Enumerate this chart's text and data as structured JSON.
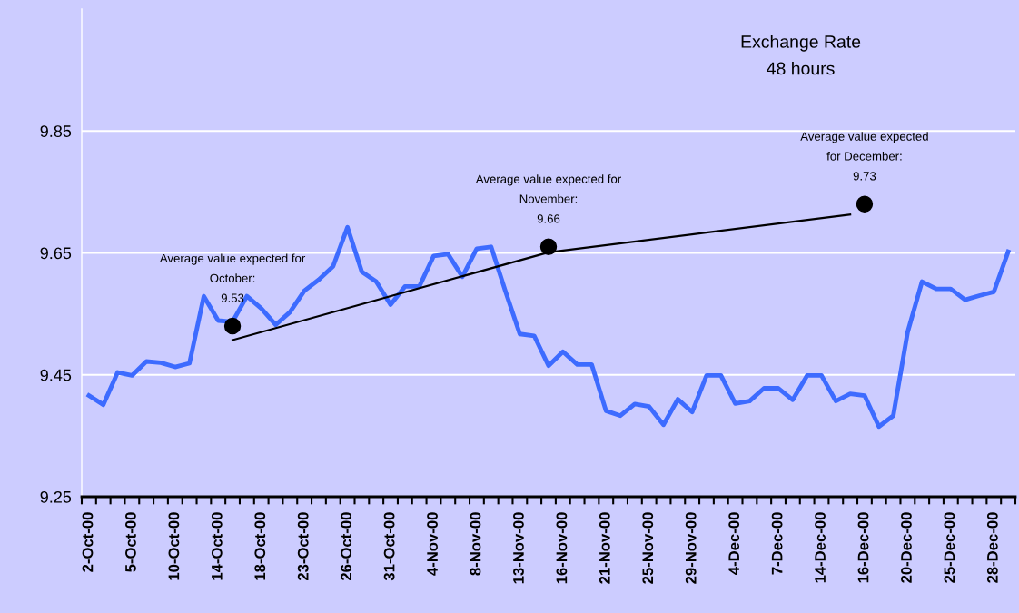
{
  "chart_data": {
    "type": "line",
    "title": "Exchange Rate",
    "subtitle": "48 hours",
    "categories": [
      "2-Oct-00",
      null,
      null,
      "5-Oct-00",
      null,
      null,
      "10-Oct-00",
      null,
      null,
      "14-Oct-00",
      null,
      null,
      "18-Oct-00",
      null,
      null,
      "23-Oct-00",
      null,
      null,
      "26-Oct-00",
      null,
      null,
      "31-Oct-00",
      null,
      null,
      "4-Nov-00",
      null,
      null,
      "8-Nov-00",
      null,
      null,
      "13-Nov-00",
      null,
      null,
      "16-Nov-00",
      null,
      null,
      "21-Nov-00",
      null,
      null,
      "25-Nov-00",
      null,
      null,
      "29-Nov-00",
      null,
      null,
      "4-Dec-00",
      null,
      null,
      "7-Dec-00",
      null,
      null,
      "14-Dec-00",
      null,
      null,
      "16-Dec-00",
      null,
      null,
      "20-Dec-00",
      null,
      null,
      "25-Dec-00",
      null,
      null,
      "28-Dec-00",
      null
    ],
    "series": [
      {
        "color": "#3d6bff",
        "values": [
          9.416,
          9.401,
          9.454,
          9.449,
          9.472,
          9.47,
          9.463,
          9.469,
          9.579,
          9.539,
          9.537,
          9.579,
          9.559,
          9.532,
          9.553,
          9.588,
          9.606,
          9.628,
          9.692,
          9.619,
          9.603,
          9.565,
          9.595,
          9.595,
          9.645,
          9.648,
          9.611,
          9.657,
          9.66,
          9.587,
          9.517,
          9.514,
          9.465,
          9.488,
          9.467,
          9.467,
          9.391,
          9.383,
          9.402,
          9.398,
          9.368,
          9.41,
          9.389,
          9.449,
          9.449,
          9.403,
          9.407,
          9.428,
          9.428,
          9.409,
          9.449,
          9.449,
          9.407,
          9.419,
          9.416,
          9.365,
          9.383,
          9.52,
          9.603,
          9.591,
          9.591,
          9.573,
          9.58,
          9.586,
          9.652
        ]
      },
      {
        "type": "line",
        "color": "#000000",
        "values": [
          null,
          null,
          null,
          null,
          null,
          null,
          null,
          null,
          null,
          null,
          9.507,
          null,
          null,
          null,
          null,
          null,
          null,
          null,
          null,
          null,
          null,
          null,
          null,
          null,
          null,
          null,
          null,
          null,
          null,
          null,
          null,
          null,
          9.651,
          null,
          null,
          null,
          null,
          null,
          null,
          null,
          null,
          null,
          null,
          null,
          null,
          null,
          null,
          null,
          null,
          null,
          null,
          null,
          null,
          9.713,
          null,
          null,
          null,
          null,
          null,
          null,
          null,
          null,
          null,
          null,
          null
        ]
      },
      {
        "type": "scatter",
        "color": "#000000",
        "values": [
          null,
          null,
          null,
          null,
          null,
          null,
          null,
          null,
          null,
          null,
          9.53,
          null,
          null,
          null,
          null,
          null,
          null,
          null,
          null,
          null,
          null,
          null,
          null,
          null,
          null,
          null,
          null,
          null,
          null,
          null,
          null,
          null,
          9.66,
          null,
          null,
          null,
          null,
          null,
          null,
          null,
          null,
          null,
          null,
          null,
          null,
          null,
          null,
          null,
          null,
          null,
          null,
          null,
          null,
          null,
          9.73,
          null,
          null,
          null,
          null,
          null,
          null,
          null,
          null,
          null,
          null
        ],
        "value_labels": [
          null,
          null,
          null,
          null,
          null,
          null,
          null,
          null,
          null,
          null,
          "Average value expected for\nOctober:\n9.53",
          null,
          null,
          null,
          null,
          null,
          null,
          null,
          null,
          null,
          null,
          null,
          null,
          null,
          null,
          null,
          null,
          null,
          null,
          null,
          null,
          null,
          "Average value expected for\nNovember:\n9.66",
          null,
          null,
          null,
          null,
          null,
          null,
          null,
          null,
          null,
          null,
          null,
          null,
          null,
          null,
          null,
          null,
          null,
          null,
          null,
          null,
          null,
          "Average value expected\nfor December:\n9.73",
          null,
          null,
          null,
          null,
          null,
          null,
          null,
          null,
          null,
          null
        ]
      }
    ],
    "ylim": [
      9.25,
      10.05
    ],
    "yticks": [
      9.25,
      9.45,
      9.65,
      9.85
    ],
    "grid": "y",
    "line_style": "solid",
    "legend": false
  }
}
